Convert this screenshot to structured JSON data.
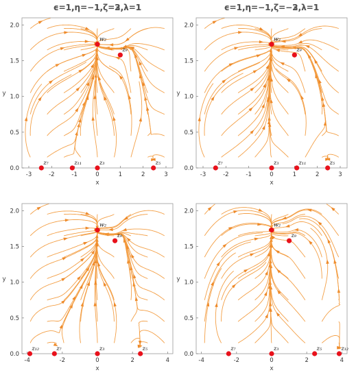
{
  "chart_data": [
    {
      "type": "streamplot",
      "title": "ϵ=1,η=−1,ζ=3,λ=1",
      "xlabel": "x",
      "ylabel": "y",
      "xlim": [
        -3.3,
        3.3
      ],
      "ylim": [
        0,
        2.1
      ],
      "xticks": [
        "-3",
        "-2",
        "-1",
        "0",
        "1",
        "2",
        "3"
      ],
      "yticks": [
        "0.0",
        "0.5",
        "1.0",
        "1.5",
        "2.0"
      ],
      "points": [
        {
          "label": "w₂",
          "x": 0,
          "y": 1.73
        },
        {
          "label": "z₉",
          "x": 1.0,
          "y": 1.58
        },
        {
          "label": "z₇",
          "x": -2.45,
          "y": 0
        },
        {
          "label": "z₁₁",
          "x": -1.1,
          "y": 0
        },
        {
          "label": "z₃",
          "x": 0,
          "y": 0
        },
        {
          "label": "z₅",
          "x": 2.45,
          "y": 0
        }
      ],
      "color": "#f29a3c",
      "point_color": "#e8111b"
    },
    {
      "type": "streamplot",
      "title": "ϵ=1,η=−1,ζ=−3,λ=1",
      "xlabel": "x",
      "ylabel": "y",
      "xlim": [
        -3.3,
        3.3
      ],
      "ylim": [
        0,
        2.1
      ],
      "xticks": [
        "-3",
        "-2",
        "-1",
        "0",
        "1",
        "2",
        "3"
      ],
      "yticks": [
        "0.0",
        "0.5",
        "1.0",
        "1.5",
        "2.0"
      ],
      "points": [
        {
          "label": "w₂",
          "x": 0,
          "y": 1.73
        },
        {
          "label": "z₉",
          "x": 1.0,
          "y": 1.58
        },
        {
          "label": "z₇",
          "x": -2.45,
          "y": 0
        },
        {
          "label": "z₃",
          "x": 0,
          "y": 0
        },
        {
          "label": "z₁₁",
          "x": 1.1,
          "y": 0
        },
        {
          "label": "z₅",
          "x": 2.45,
          "y": 0
        }
      ],
      "color": "#f29a3c",
      "point_color": "#e8111b"
    },
    {
      "type": "streamplot",
      "title": "ϵ=1,η=−1,ζ=2,λ=1",
      "xlabel": "x",
      "ylabel": "y",
      "xlim": [
        -4.3,
        4.3
      ],
      "ylim": [
        0,
        2.1
      ],
      "xticks": [
        "-4",
        "-2",
        "0",
        "2",
        "4"
      ],
      "yticks": [
        "0.0",
        "0.5",
        "1.0",
        "1.5",
        "2.0"
      ],
      "points": [
        {
          "label": "w₂",
          "x": 0,
          "y": 1.73
        },
        {
          "label": "z₉",
          "x": 1.0,
          "y": 1.58
        },
        {
          "label": "z₁₂",
          "x": -3.85,
          "y": 0
        },
        {
          "label": "z₇",
          "x": -2.45,
          "y": 0
        },
        {
          "label": "z₃",
          "x": 0,
          "y": 0
        },
        {
          "label": "z₅",
          "x": 2.45,
          "y": 0
        }
      ],
      "color": "#f29a3c",
      "point_color": "#e8111b"
    },
    {
      "type": "streamplot",
      "title": "ϵ=1,η=−1,ζ=−2,λ=1",
      "xlabel": "x",
      "ylabel": "y",
      "xlim": [
        -4.3,
        4.3
      ],
      "ylim": [
        0,
        2.1
      ],
      "xticks": [
        "-4",
        "-2",
        "0",
        "2",
        "4"
      ],
      "yticks": [
        "0.0",
        "0.5",
        "1.0",
        "1.5",
        "2.0"
      ],
      "points": [
        {
          "label": "w₂",
          "x": 0,
          "y": 1.73
        },
        {
          "label": "z₉",
          "x": 1.0,
          "y": 1.58
        },
        {
          "label": "z₇",
          "x": -2.45,
          "y": 0
        },
        {
          "label": "z₃",
          "x": 0,
          "y": 0
        },
        {
          "label": "z₅",
          "x": 2.45,
          "y": 0
        },
        {
          "label": "z₁₂",
          "x": 3.85,
          "y": 0
        }
      ],
      "color": "#f29a3c",
      "point_color": "#e8111b"
    }
  ]
}
